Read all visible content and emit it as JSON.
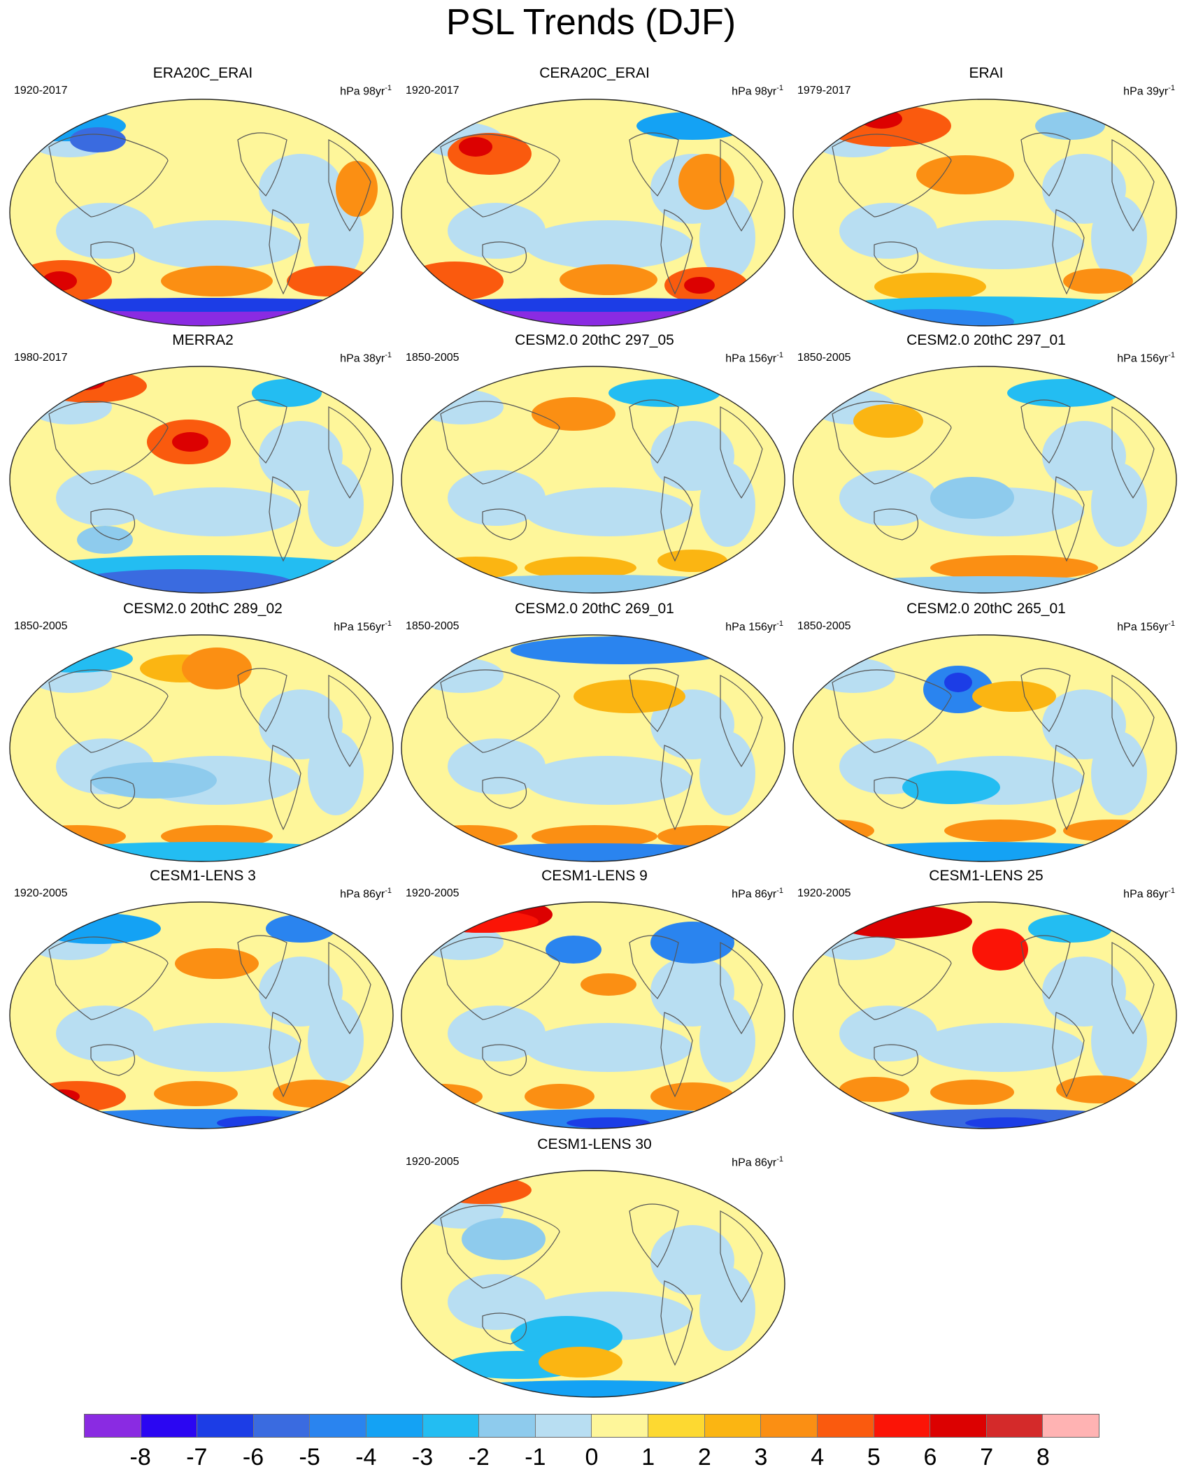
{
  "title": "PSL Trends (DJF)",
  "panels": [
    {
      "title": "ERA20C_ERAI",
      "period": "1920-2017",
      "units": "hPa 98yr",
      "sup": "-1"
    },
    {
      "title": "CERA20C_ERAI",
      "period": "1920-2017",
      "units": "hPa 98yr",
      "sup": "-1"
    },
    {
      "title": "ERAI",
      "period": "1979-2017",
      "units": "hPa 39yr",
      "sup": "-1"
    },
    {
      "title": "MERRA2",
      "period": "1980-2017",
      "units": "hPa 38yr",
      "sup": "-1"
    },
    {
      "title": "CESM2.0 20thC 297_05",
      "period": "1850-2005",
      "units": "hPa 156yr",
      "sup": "-1"
    },
    {
      "title": "CESM2.0 20thC 297_01",
      "period": "1850-2005",
      "units": "hPa 156yr",
      "sup": "-1"
    },
    {
      "title": "CESM2.0 20thC 289_02",
      "period": "1850-2005",
      "units": "hPa 156yr",
      "sup": "-1"
    },
    {
      "title": "CESM2.0 20thC 269_01",
      "period": "1850-2005",
      "units": "hPa 156yr",
      "sup": "-1"
    },
    {
      "title": "CESM2.0 20thC 265_01",
      "period": "1850-2005",
      "units": "hPa 156yr",
      "sup": "-1"
    },
    {
      "title": "CESM1-LENS 3",
      "period": "1920-2005",
      "units": "hPa 86yr",
      "sup": "-1"
    },
    {
      "title": "CESM1-LENS 9",
      "period": "1920-2005",
      "units": "hPa 86yr",
      "sup": "-1"
    },
    {
      "title": "CESM1-LENS 25",
      "period": "1920-2005",
      "units": "hPa 86yr",
      "sup": "-1"
    },
    {
      "title": "CESM1-LENS 30",
      "period": "1920-2005",
      "units": "hPa 86yr",
      "sup": "-1"
    }
  ],
  "colorbar": {
    "colors": [
      "#8a2be2",
      "#2b06f2",
      "#1c3de6",
      "#3a6be0",
      "#2a84ef",
      "#14a2f4",
      "#23bdf2",
      "#8ecbed",
      "#b8def2",
      "#fef69a",
      "#fdd931",
      "#fbb512",
      "#fb8f13",
      "#fa5a0e",
      "#fb1406",
      "#dc0101",
      "#d42a2a",
      "#ffb3b3"
    ],
    "ticks": [
      "-8",
      "-7",
      "-6",
      "-5",
      "-4",
      "-3",
      "-2",
      "-1",
      "0",
      "1",
      "2",
      "3",
      "4",
      "5",
      "6",
      "7",
      "8"
    ]
  }
}
